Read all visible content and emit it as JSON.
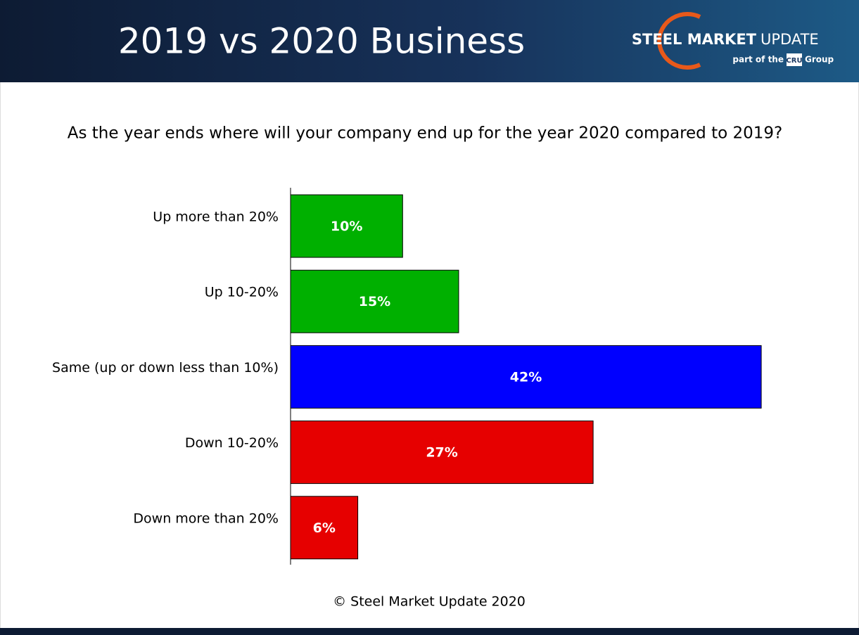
{
  "header": {
    "title": "2019 vs 2020 Business",
    "logo_bold": "STEEL MARKET",
    "logo_light": "UPDATE",
    "logo_part": "part of the",
    "logo_badge": "CRU",
    "logo_group": "Group"
  },
  "chart_data": {
    "type": "hbar",
    "title": "As the year ends where will your company end up for the year 2020 compared to 2019?",
    "categories": [
      "Up more than 20%",
      "Up 10-20%",
      "Same (up or down less than 10%)",
      "Down 10-20%",
      "Down more than 20%"
    ],
    "values": [
      10,
      15,
      42,
      27,
      6
    ],
    "value_labels": [
      "10%",
      "15%",
      "42%",
      "27%",
      "6%"
    ],
    "colors": [
      "#00b000",
      "#00b000",
      "#0000ff",
      "#e60000",
      "#e60000"
    ]
  },
  "footer": {
    "text": "© Steel Market Update 2020"
  }
}
